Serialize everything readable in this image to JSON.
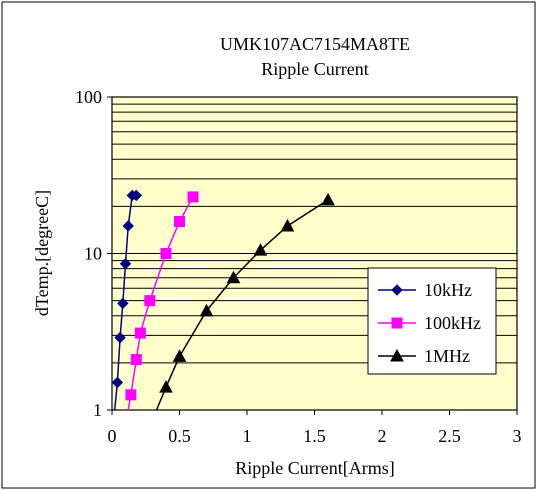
{
  "chart_data": {
    "type": "line",
    "title": "UMK107AC7154MA8TE",
    "subtitle": "Ripple Current",
    "xlabel": "Ripple Current[Arms]",
    "ylabel": "dTemp.[degreeC]",
    "xlim": [
      0,
      3
    ],
    "ylim": [
      1,
      100
    ],
    "yscale": "log",
    "x_ticks": [
      "0",
      "0.5",
      "1",
      "1.5",
      "2",
      "2.5",
      "3"
    ],
    "y_ticks": [
      "1",
      "10",
      "100"
    ],
    "grid": true,
    "legend_position": "right",
    "plot_background": "#ffffcc",
    "series": [
      {
        "name": "10kHz",
        "color": "#000080",
        "marker": "diamond",
        "x": [
          0.02,
          0.04,
          0.06,
          0.08,
          0.1,
          0.12,
          0.15,
          0.18
        ],
        "y": [
          1.0,
          1.5,
          2.9,
          4.8,
          8.6,
          15.0,
          23.5,
          23.5
        ]
      },
      {
        "name": "100kHz",
        "color": "#ff00ff",
        "marker": "square",
        "x": [
          0.12,
          0.14,
          0.18,
          0.21,
          0.28,
          0.4,
          0.5,
          0.6
        ],
        "y": [
          1.0,
          1.25,
          2.1,
          3.1,
          5.0,
          10.0,
          16.0,
          23.0
        ],
        "points_idx_start": 1
      },
      {
        "name": "1MHz",
        "color": "#000000",
        "marker": "triangle",
        "x": [
          0.33,
          0.4,
          0.5,
          0.7,
          0.9,
          1.1,
          1.3,
          1.6
        ],
        "y": [
          1.0,
          1.4,
          2.2,
          4.3,
          7.0,
          10.5,
          15.0,
          22.0
        ]
      }
    ]
  }
}
